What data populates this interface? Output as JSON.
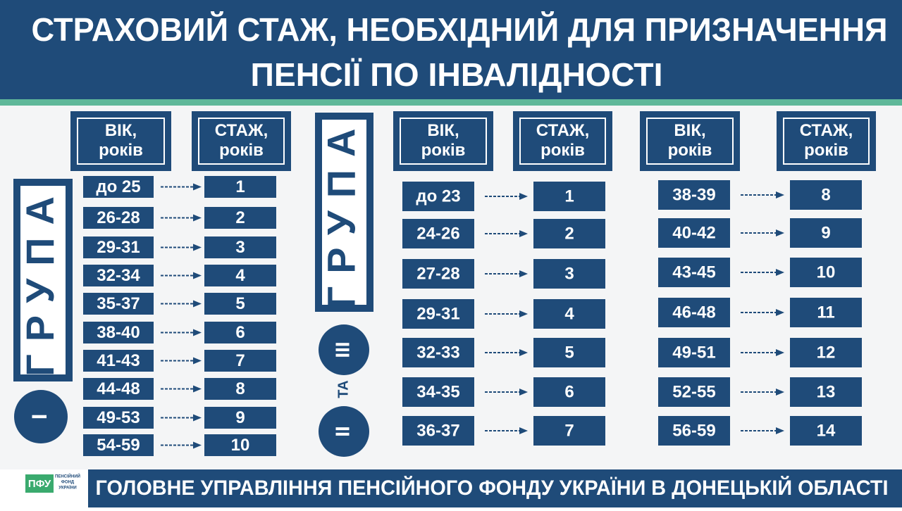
{
  "header": {
    "title_lines": [
      "СТРАХОВИЙ СТАЖ, НЕОБХІДНИЙ ДЛЯ ПРИЗНАЧЕННЯ",
      "ПЕНСІЇ  ПО ІНВАЛІДНОСТІ"
    ]
  },
  "group1": {
    "numeral": "І",
    "word": "ГРУПА",
    "age_header": [
      "ВІК,",
      "років"
    ],
    "stazh_header": [
      "СТАЖ,",
      "років"
    ],
    "rows": [
      [
        "до 25",
        1
      ],
      [
        "26-28",
        2
      ],
      [
        "29-31",
        3
      ],
      [
        "32-34",
        4
      ],
      [
        "35-37",
        5
      ],
      [
        "38-40",
        6
      ],
      [
        "41-43",
        7
      ],
      [
        "44-48",
        8
      ],
      [
        "49-53",
        9
      ],
      [
        "54-59",
        10
      ]
    ]
  },
  "group2": {
    "numeral_a": "ІІ",
    "conjunction": "ТА",
    "numeral_b": "ІІІ",
    "word": "ГРУПА",
    "columns": [
      {
        "age_header": [
          "ВІК,",
          "років"
        ],
        "stazh_header": [
          "СТАЖ,",
          "років"
        ],
        "rows": [
          [
            "до 23",
            1
          ],
          [
            "24-26",
            2
          ],
          [
            "27-28",
            3
          ],
          [
            "29-31",
            4
          ],
          [
            "32-33",
            5
          ],
          [
            "34-35",
            6
          ],
          [
            "36-37",
            7
          ]
        ]
      },
      {
        "age_header": [
          "ВІК,",
          "років"
        ],
        "stazh_header": [
          "СТАЖ,",
          "років"
        ],
        "rows": [
          [
            "38-39",
            8
          ],
          [
            "40-42",
            9
          ],
          [
            "43-45",
            10
          ],
          [
            "46-48",
            11
          ],
          [
            "49-51",
            12
          ],
          [
            "52-55",
            13
          ],
          [
            "56-59",
            14
          ]
        ]
      }
    ]
  },
  "footer": {
    "logo": "ПФУ",
    "logo_caption": [
      "ПЕНСІЙНИЙ",
      "ФОНД",
      "УКРАЇНИ"
    ],
    "text": "ГОЛОВНЕ УПРАВЛІННЯ ПЕНСІЙНОГО ФОНДУ УКРАЇНИ В ДОНЕЦЬКІЙ ОБЛАСТІ"
  }
}
